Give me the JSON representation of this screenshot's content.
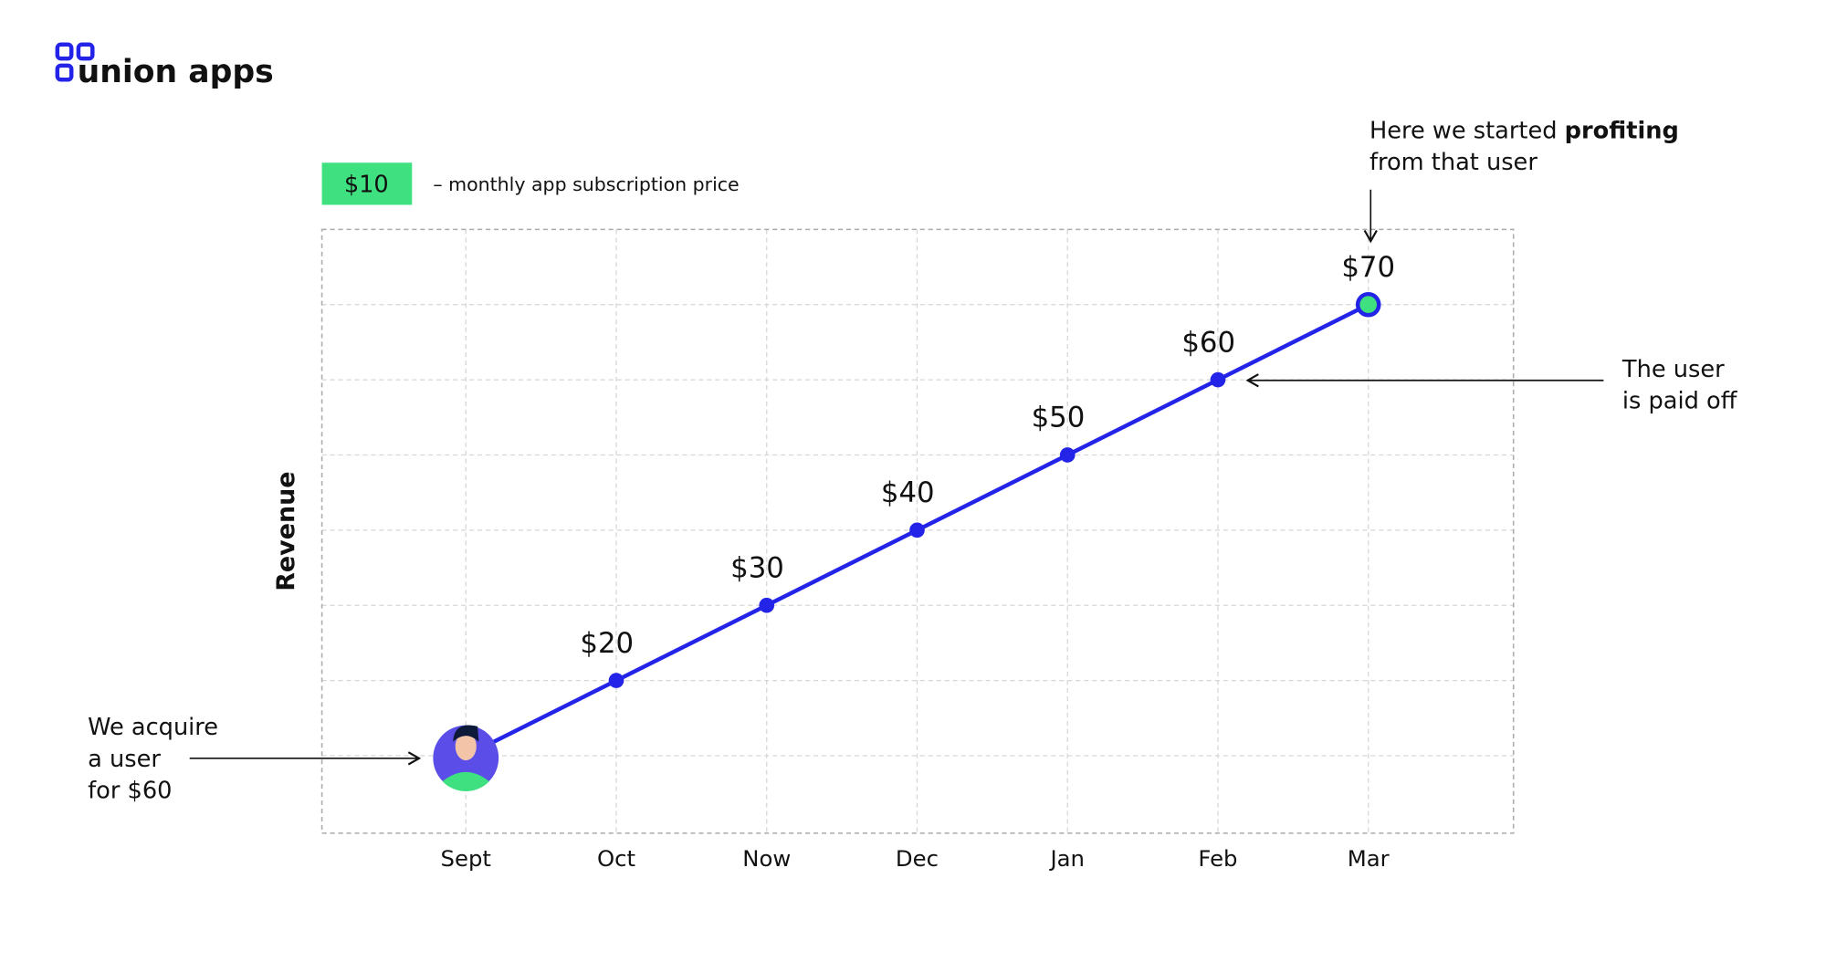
{
  "brand": "union apps",
  "chart_data": {
    "type": "line",
    "legend": {
      "label": "$10",
      "text": "– monthly app subscription price",
      "color": "#3ee07f"
    },
    "y_label": "Revenue",
    "categories": [
      "Sept",
      "Oct",
      "Now",
      "Dec",
      "Jan",
      "Feb",
      "Mar"
    ],
    "series": [
      {
        "color": "#2424e8",
        "values": [
          10,
          20,
          30,
          40,
          50,
          60,
          70
        ],
        "value_labels": [
          null,
          "$20",
          "$30",
          "$40",
          "$50",
          "$60",
          "$70"
        ]
      }
    ],
    "ylim": [
      0,
      80
    ],
    "yticks": [
      10,
      20,
      30,
      40,
      50,
      60,
      70
    ],
    "grid": true,
    "highlight_color": "#3ee07f",
    "annotations": [
      {
        "lines": [
          [
            "Here we started ",
            "profiting"
          ],
          [
            "from that user"
          ]
        ]
      },
      {
        "lines": [
          [
            "The user"
          ],
          [
            "is paid off"
          ]
        ]
      },
      {
        "lines": [
          [
            "We acquire"
          ],
          [
            "a user"
          ],
          [
            "for $60"
          ]
        ]
      }
    ]
  }
}
